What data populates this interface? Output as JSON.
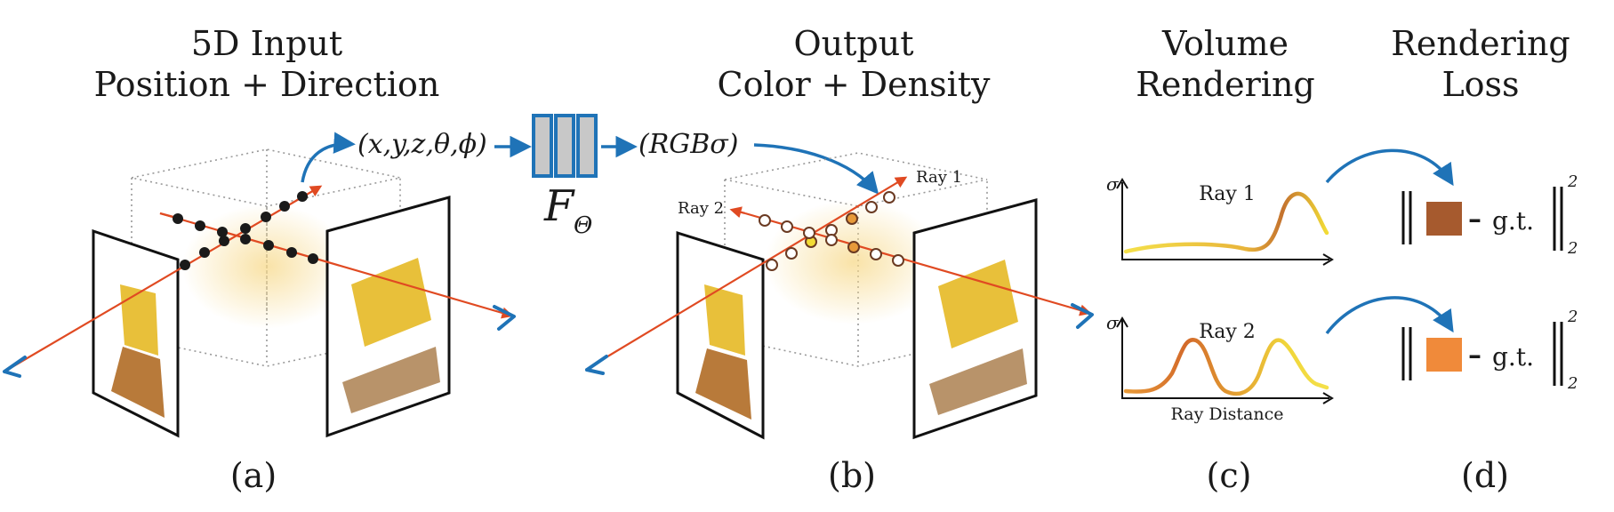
{
  "panels": {
    "a": {
      "title_line1": "5D Input",
      "title_line2": "Position + Direction",
      "label": "(a)",
      "input_tuple": "(x,y,z,θ,ϕ)"
    },
    "network": {
      "symbol": "F",
      "subscript": "Θ"
    },
    "b": {
      "title_line1": "Output",
      "title_line2": "Color + Density",
      "label": "(b)",
      "output_tuple": "(RGBσ)",
      "ray1_label": "Ray 1",
      "ray2_label": "Ray 2"
    },
    "c": {
      "title_line1": "Volume",
      "title_line2": "Rendering",
      "label": "(c)",
      "plot1_ylabel": "σ",
      "plot1_title": "Ray 1",
      "plot2_ylabel": "σ",
      "plot2_title": "Ray 2",
      "plot2_xlabel": "Ray Distance"
    },
    "d": {
      "title_line1": "Rendering",
      "title_line2": "Loss",
      "label": "(d)",
      "loss1_text": "g.t.",
      "loss2_text": "g.t.",
      "dash": "–",
      "sup": "2",
      "sub": "2"
    }
  },
  "colors": {
    "ray": "#e04a22",
    "arrow_blue": "#1f73b7",
    "net_fill": "#c8c8c8",
    "net_stroke": "#1f73b7",
    "swatch1": "#a65a2e",
    "swatch2": "#f08a3a",
    "sample_dark": "#1a1a1a"
  }
}
